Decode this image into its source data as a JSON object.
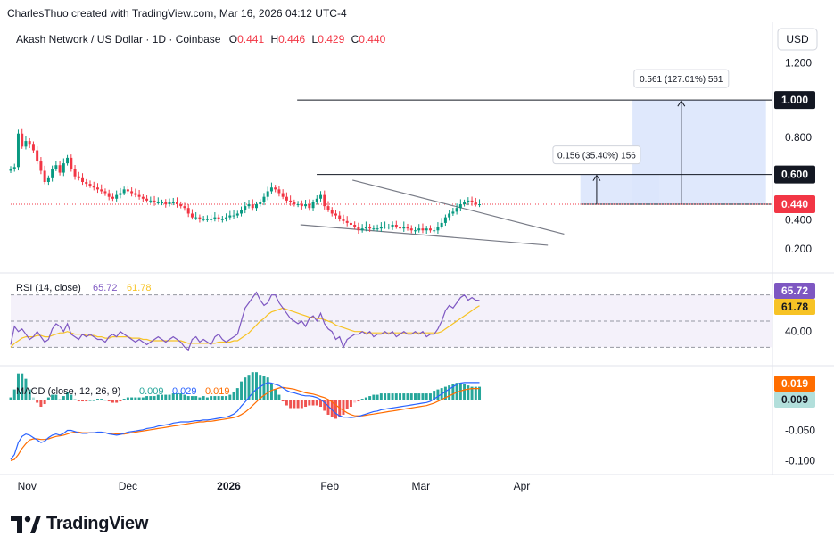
{
  "credit": "CharlesThuo created with TradingView.com, Mar 16, 2026 04:12 UTC-4",
  "header": {
    "symbol": "Akash Network / US Dollar · 1D · Coinbase",
    "o_label": "O",
    "o_value": "0.441",
    "h_label": "H",
    "h_value": "0.446",
    "l_label": "L",
    "l_value": "0.429",
    "c_label": "C",
    "c_value": "0.440"
  },
  "currency": "USD",
  "brand": "TradingView",
  "colors": {
    "up": "#089981",
    "down": "#f23645",
    "rsi": "#7e57c2",
    "rsi_ma": "#f7c325",
    "macd": "#2962ff",
    "signal": "#ff6d00",
    "hist_up": "#26a69a",
    "hist_down": "#ef5350",
    "projection_fill": "#dbe5fc",
    "price_line": "#f23645"
  },
  "chart_data": [
    {
      "type": "candlestick",
      "title": "Akash Network / US Dollar · 1D · Coinbase",
      "x_ticks": [
        "Nov",
        "Dec",
        "2026",
        "Feb",
        "Mar",
        "Apr"
      ],
      "y_ticks": [
        "1.200",
        "0.800",
        "0.200"
      ],
      "y_range": [
        0.1,
        1.25
      ],
      "price_labels": [
        {
          "text": "1.000",
          "value": 1.0,
          "style": "level"
        },
        {
          "text": "0.600",
          "value": 0.6,
          "style": "level"
        },
        {
          "text": "0.440",
          "value": 0.44,
          "style": "current"
        },
        {
          "text": "0.400",
          "value": 0.4,
          "style": "partial"
        }
      ],
      "annotations": [
        {
          "text": "0.561 (127.01%) 561",
          "target": 1.0
        },
        {
          "text": "0.156 (35.40%) 156",
          "target": 0.6
        }
      ],
      "close_series": [
        0.63,
        0.64,
        0.82,
        0.75,
        0.78,
        0.76,
        0.73,
        0.67,
        0.62,
        0.56,
        0.58,
        0.63,
        0.65,
        0.61,
        0.66,
        0.69,
        0.63,
        0.59,
        0.58,
        0.56,
        0.55,
        0.54,
        0.53,
        0.52,
        0.51,
        0.5,
        0.48,
        0.47,
        0.49,
        0.5,
        0.52,
        0.51,
        0.5,
        0.49,
        0.48,
        0.47,
        0.46,
        0.46,
        0.45,
        0.45,
        0.45,
        0.44,
        0.45,
        0.45,
        0.44,
        0.43,
        0.42,
        0.39,
        0.37,
        0.37,
        0.36,
        0.36,
        0.36,
        0.36,
        0.37,
        0.36,
        0.36,
        0.37,
        0.38,
        0.38,
        0.39,
        0.41,
        0.43,
        0.44,
        0.42,
        0.44,
        0.45,
        0.48,
        0.51,
        0.53,
        0.52,
        0.5,
        0.48,
        0.46,
        0.45,
        0.44,
        0.44,
        0.43,
        0.44,
        0.42,
        0.45,
        0.47,
        0.49,
        0.43,
        0.41,
        0.39,
        0.38,
        0.36,
        0.35,
        0.34,
        0.33,
        0.32,
        0.3,
        0.31,
        0.32,
        0.31,
        0.31,
        0.31,
        0.32,
        0.32,
        0.32,
        0.33,
        0.32,
        0.31,
        0.32,
        0.31,
        0.3,
        0.3,
        0.31,
        0.3,
        0.31,
        0.3,
        0.3,
        0.32,
        0.34,
        0.37,
        0.39,
        0.4,
        0.42,
        0.44,
        0.45,
        0.46,
        0.45,
        0.44,
        0.44
      ]
    },
    {
      "type": "line",
      "title": "RSI (14, close)",
      "series": [
        {
          "name": "65.72",
          "value_label": "65.72"
        },
        {
          "name": "61.78",
          "value_label": "61.78"
        }
      ],
      "y_ticks": [
        "40.00"
      ],
      "y_range": [
        20,
        80
      ],
      "bands": [
        70,
        50,
        30
      ],
      "rsi_values": [
        32,
        46,
        42,
        44,
        40,
        36,
        38,
        42,
        38,
        34,
        36,
        44,
        48,
        46,
        42,
        48,
        40,
        38,
        36,
        40,
        38,
        40,
        38,
        36,
        36,
        34,
        38,
        40,
        38,
        42,
        40,
        38,
        36,
        34,
        36,
        34,
        32,
        34,
        36,
        38,
        36,
        34,
        36,
        38,
        36,
        34,
        30,
        28,
        36,
        38,
        34,
        36,
        34,
        32,
        38,
        40,
        36,
        34,
        36,
        38,
        40,
        50,
        60,
        64,
        68,
        72,
        66,
        62,
        64,
        70,
        70,
        64,
        60,
        56,
        52,
        50,
        48,
        50,
        46,
        52,
        54,
        50,
        56,
        48,
        44,
        42,
        36,
        38,
        30,
        36,
        38,
        40,
        40,
        42,
        40,
        42,
        38,
        40,
        40,
        42,
        40,
        42,
        38,
        40,
        42,
        40,
        40,
        42,
        40,
        42,
        38,
        40,
        40,
        44,
        50,
        58,
        62,
        60,
        64,
        68,
        70,
        66,
        68,
        66,
        65.72
      ],
      "rsi_ma_values": [
        30,
        33,
        35,
        37,
        38,
        38,
        38,
        39,
        39,
        38,
        38,
        39,
        40,
        41,
        41,
        42,
        41,
        40,
        40,
        40,
        39,
        39,
        39,
        38,
        38,
        37,
        37,
        38,
        38,
        38,
        38,
        38,
        37,
        37,
        37,
        36,
        36,
        35,
        35,
        35,
        35,
        35,
        35,
        35,
        35,
        35,
        34,
        33,
        33,
        33,
        33,
        33,
        33,
        33,
        33,
        34,
        34,
        34,
        34,
        35,
        35,
        37,
        39,
        41,
        44,
        47,
        50,
        52,
        55,
        57,
        58,
        59,
        60,
        59,
        58,
        57,
        56,
        55,
        54,
        53,
        53,
        52,
        52,
        51,
        50,
        49,
        47,
        46,
        45,
        44,
        43,
        42,
        42,
        42,
        41,
        41,
        41,
        41,
        41,
        41,
        41,
        41,
        41,
        41,
        41,
        41,
        41,
        41,
        41,
        41,
        41,
        41,
        41,
        41,
        42,
        44,
        46,
        48,
        50,
        52,
        54,
        56,
        58,
        60,
        61.78
      ]
    },
    {
      "type": "line",
      "title": "MACD (close, 12, 26, 9)",
      "series": [
        {
          "name": "0.009",
          "value_label": "0.009"
        },
        {
          "name": "0.029",
          "value_label": "0.029"
        },
        {
          "name": "0.019",
          "value_label": "0.019"
        }
      ],
      "y_ticks": [
        "-0.050",
        "-0.100"
      ],
      "y_range": [
        -0.12,
        0.045
      ],
      "macd_values": [
        -0.098,
        -0.09,
        -0.07,
        -0.06,
        -0.056,
        -0.058,
        -0.062,
        -0.066,
        -0.07,
        -0.068,
        -0.062,
        -0.058,
        -0.056,
        -0.058,
        -0.055,
        -0.05,
        -0.05,
        -0.052,
        -0.054,
        -0.055,
        -0.055,
        -0.054,
        -0.054,
        -0.053,
        -0.053,
        -0.054,
        -0.056,
        -0.057,
        -0.058,
        -0.057,
        -0.055,
        -0.053,
        -0.052,
        -0.051,
        -0.05,
        -0.049,
        -0.047,
        -0.046,
        -0.045,
        -0.043,
        -0.042,
        -0.041,
        -0.04,
        -0.038,
        -0.037,
        -0.036,
        -0.036,
        -0.036,
        -0.035,
        -0.034,
        -0.034,
        -0.033,
        -0.033,
        -0.032,
        -0.031,
        -0.03,
        -0.029,
        -0.028,
        -0.026,
        -0.023,
        -0.018,
        -0.01,
        -0.003,
        0.004,
        0.012,
        0.018,
        0.022,
        0.026,
        0.029,
        0.028,
        0.026,
        0.024,
        0.02,
        0.016,
        0.013,
        0.012,
        0.01,
        0.008,
        0.007,
        0.007,
        0.006,
        0.004,
        0.001,
        -0.004,
        -0.01,
        -0.016,
        -0.022,
        -0.026,
        -0.028,
        -0.028,
        -0.029,
        -0.028,
        -0.027,
        -0.025,
        -0.023,
        -0.021,
        -0.019,
        -0.018,
        -0.016,
        -0.015,
        -0.014,
        -0.013,
        -0.012,
        -0.011,
        -0.01,
        -0.009,
        -0.008,
        -0.007,
        -0.006,
        -0.005,
        -0.004,
        -0.002,
        0.002,
        0.006,
        0.01,
        0.014,
        0.018,
        0.022,
        0.026,
        0.028,
        0.029,
        0.029,
        0.029,
        0.029,
        0.029
      ],
      "signal_values": [
        -0.1,
        -0.098,
        -0.09,
        -0.08,
        -0.072,
        -0.066,
        -0.064,
        -0.064,
        -0.065,
        -0.065,
        -0.064,
        -0.062,
        -0.06,
        -0.059,
        -0.058,
        -0.056,
        -0.054,
        -0.053,
        -0.053,
        -0.054,
        -0.054,
        -0.054,
        -0.054,
        -0.054,
        -0.054,
        -0.054,
        -0.055,
        -0.055,
        -0.056,
        -0.056,
        -0.056,
        -0.055,
        -0.054,
        -0.053,
        -0.052,
        -0.051,
        -0.05,
        -0.049,
        -0.048,
        -0.047,
        -0.046,
        -0.045,
        -0.044,
        -0.043,
        -0.042,
        -0.041,
        -0.04,
        -0.039,
        -0.038,
        -0.037,
        -0.036,
        -0.036,
        -0.035,
        -0.035,
        -0.034,
        -0.033,
        -0.032,
        -0.031,
        -0.03,
        -0.029,
        -0.027,
        -0.024,
        -0.02,
        -0.015,
        -0.009,
        -0.003,
        0.003,
        0.008,
        0.012,
        0.016,
        0.018,
        0.02,
        0.021,
        0.02,
        0.019,
        0.018,
        0.016,
        0.014,
        0.012,
        0.011,
        0.01,
        0.008,
        0.006,
        0.004,
        0.001,
        -0.003,
        -0.008,
        -0.013,
        -0.017,
        -0.021,
        -0.024,
        -0.026,
        -0.026,
        -0.026,
        -0.025,
        -0.024,
        -0.023,
        -0.022,
        -0.021,
        -0.02,
        -0.019,
        -0.018,
        -0.017,
        -0.016,
        -0.015,
        -0.014,
        -0.013,
        -0.012,
        -0.011,
        -0.01,
        -0.009,
        -0.007,
        -0.005,
        -0.002,
        0.001,
        0.004,
        0.007,
        0.01,
        0.013,
        0.015,
        0.017,
        0.018,
        0.019,
        0.019,
        0.019
      ]
    }
  ]
}
